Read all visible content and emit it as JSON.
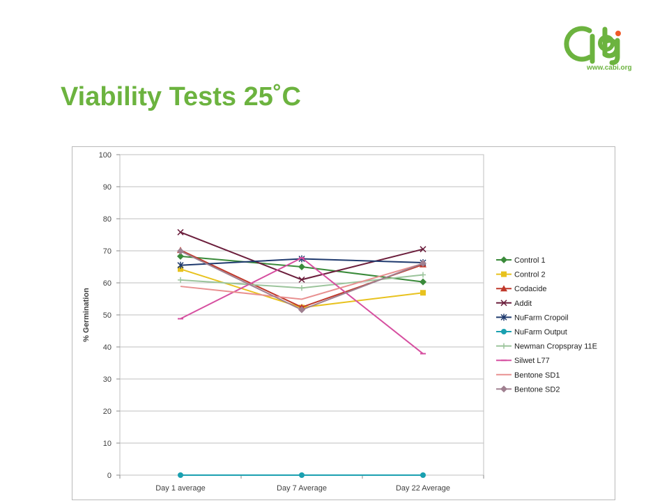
{
  "slide": {
    "title": "Viability Tests 25˚C",
    "logo_text": "www.cabi.org"
  },
  "colors": {
    "title": "#6cb33f",
    "logo": "#6cb33f",
    "logo_dot": "#f05a28",
    "grid": "#bfbfbf",
    "axis_text": "#404040"
  },
  "chart_data": {
    "type": "line",
    "title": "",
    "xlabel": "",
    "ylabel": "% Germination",
    "ylim": [
      0,
      100
    ],
    "yticks": [
      0,
      10,
      20,
      30,
      40,
      50,
      60,
      70,
      80,
      90,
      100
    ],
    "categories": [
      "Day 1 average",
      "Day 7 Average",
      "Day 22 Average"
    ],
    "grid": true,
    "legend_position": "right",
    "series": [
      {
        "name": "Control 1",
        "values": [
          68.3,
          65,
          60.3
        ],
        "color": "#3a8a3a",
        "marker": "diamond"
      },
      {
        "name": "Control 2",
        "values": [
          64.3,
          52.3,
          56.9
        ],
        "color": "#e8c21e",
        "marker": "square"
      },
      {
        "name": "Codacide",
        "values": [
          70.2,
          52.4,
          65.7
        ],
        "color": "#c0392b",
        "marker": "triangle"
      },
      {
        "name": "Addit",
        "values": [
          75.8,
          61,
          70.5
        ],
        "color": "#6b1e3c",
        "marker": "x"
      },
      {
        "name": "NuFarm Cropoil",
        "values": [
          65.5,
          67.5,
          66.3
        ],
        "color": "#1f3a6e",
        "marker": "star"
      },
      {
        "name": "NuFarm Output",
        "values": [
          0,
          0,
          0
        ],
        "color": "#1aa0b0",
        "marker": "circle"
      },
      {
        "name": "Newman Cropspray 11E",
        "values": [
          60.9,
          58.4,
          62.5
        ],
        "color": "#9bc49b",
        "marker": "plus"
      },
      {
        "name": "Silwet L77",
        "values": [
          48.8,
          67.8,
          37.9
        ],
        "color": "#d64fa0",
        "marker": "dash"
      },
      {
        "name": "Bentone SD1",
        "values": [
          58.9,
          54.9,
          66
        ],
        "color": "#e89090",
        "marker": "none"
      },
      {
        "name": "Bentone SD2",
        "values": [
          69.9,
          51.6,
          66.1
        ],
        "color": "#a08090",
        "marker": "diamond"
      }
    ]
  }
}
